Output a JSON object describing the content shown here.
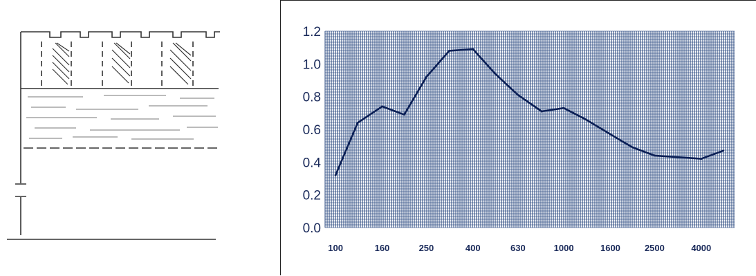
{
  "colors": {
    "grid": "#1f3f7a",
    "plot_background": "#3a5c95",
    "curve": "#0b1f55",
    "sketch_ink": "#333333"
  },
  "sketch": {
    "description_icon": "panel-absorber-sketch-icon"
  },
  "chart_data": {
    "type": "line",
    "title": "",
    "xlabel": "",
    "ylabel": "",
    "x_scale": "log",
    "grid": true,
    "ylim": [
      0.0,
      1.2
    ],
    "yticks": [
      "0.0",
      "0.2",
      "0.4",
      "0.6",
      "0.8",
      "1.0",
      "1.2"
    ],
    "xticks": [
      "100",
      "160",
      "250",
      "400",
      "630",
      "1000",
      "1600",
      "2500",
      "4000"
    ],
    "series": [
      {
        "x": [
          100,
          125,
          160,
          200,
          250,
          315,
          400,
          500,
          630,
          800,
          1000,
          1250,
          1600,
          2000,
          2500,
          3150,
          4000,
          5000
        ],
        "values": [
          0.32,
          0.64,
          0.74,
          0.69,
          0.92,
          1.08,
          1.09,
          0.94,
          0.81,
          0.71,
          0.73,
          0.66,
          0.57,
          0.49,
          0.44,
          0.43,
          0.42,
          0.47
        ]
      }
    ]
  }
}
